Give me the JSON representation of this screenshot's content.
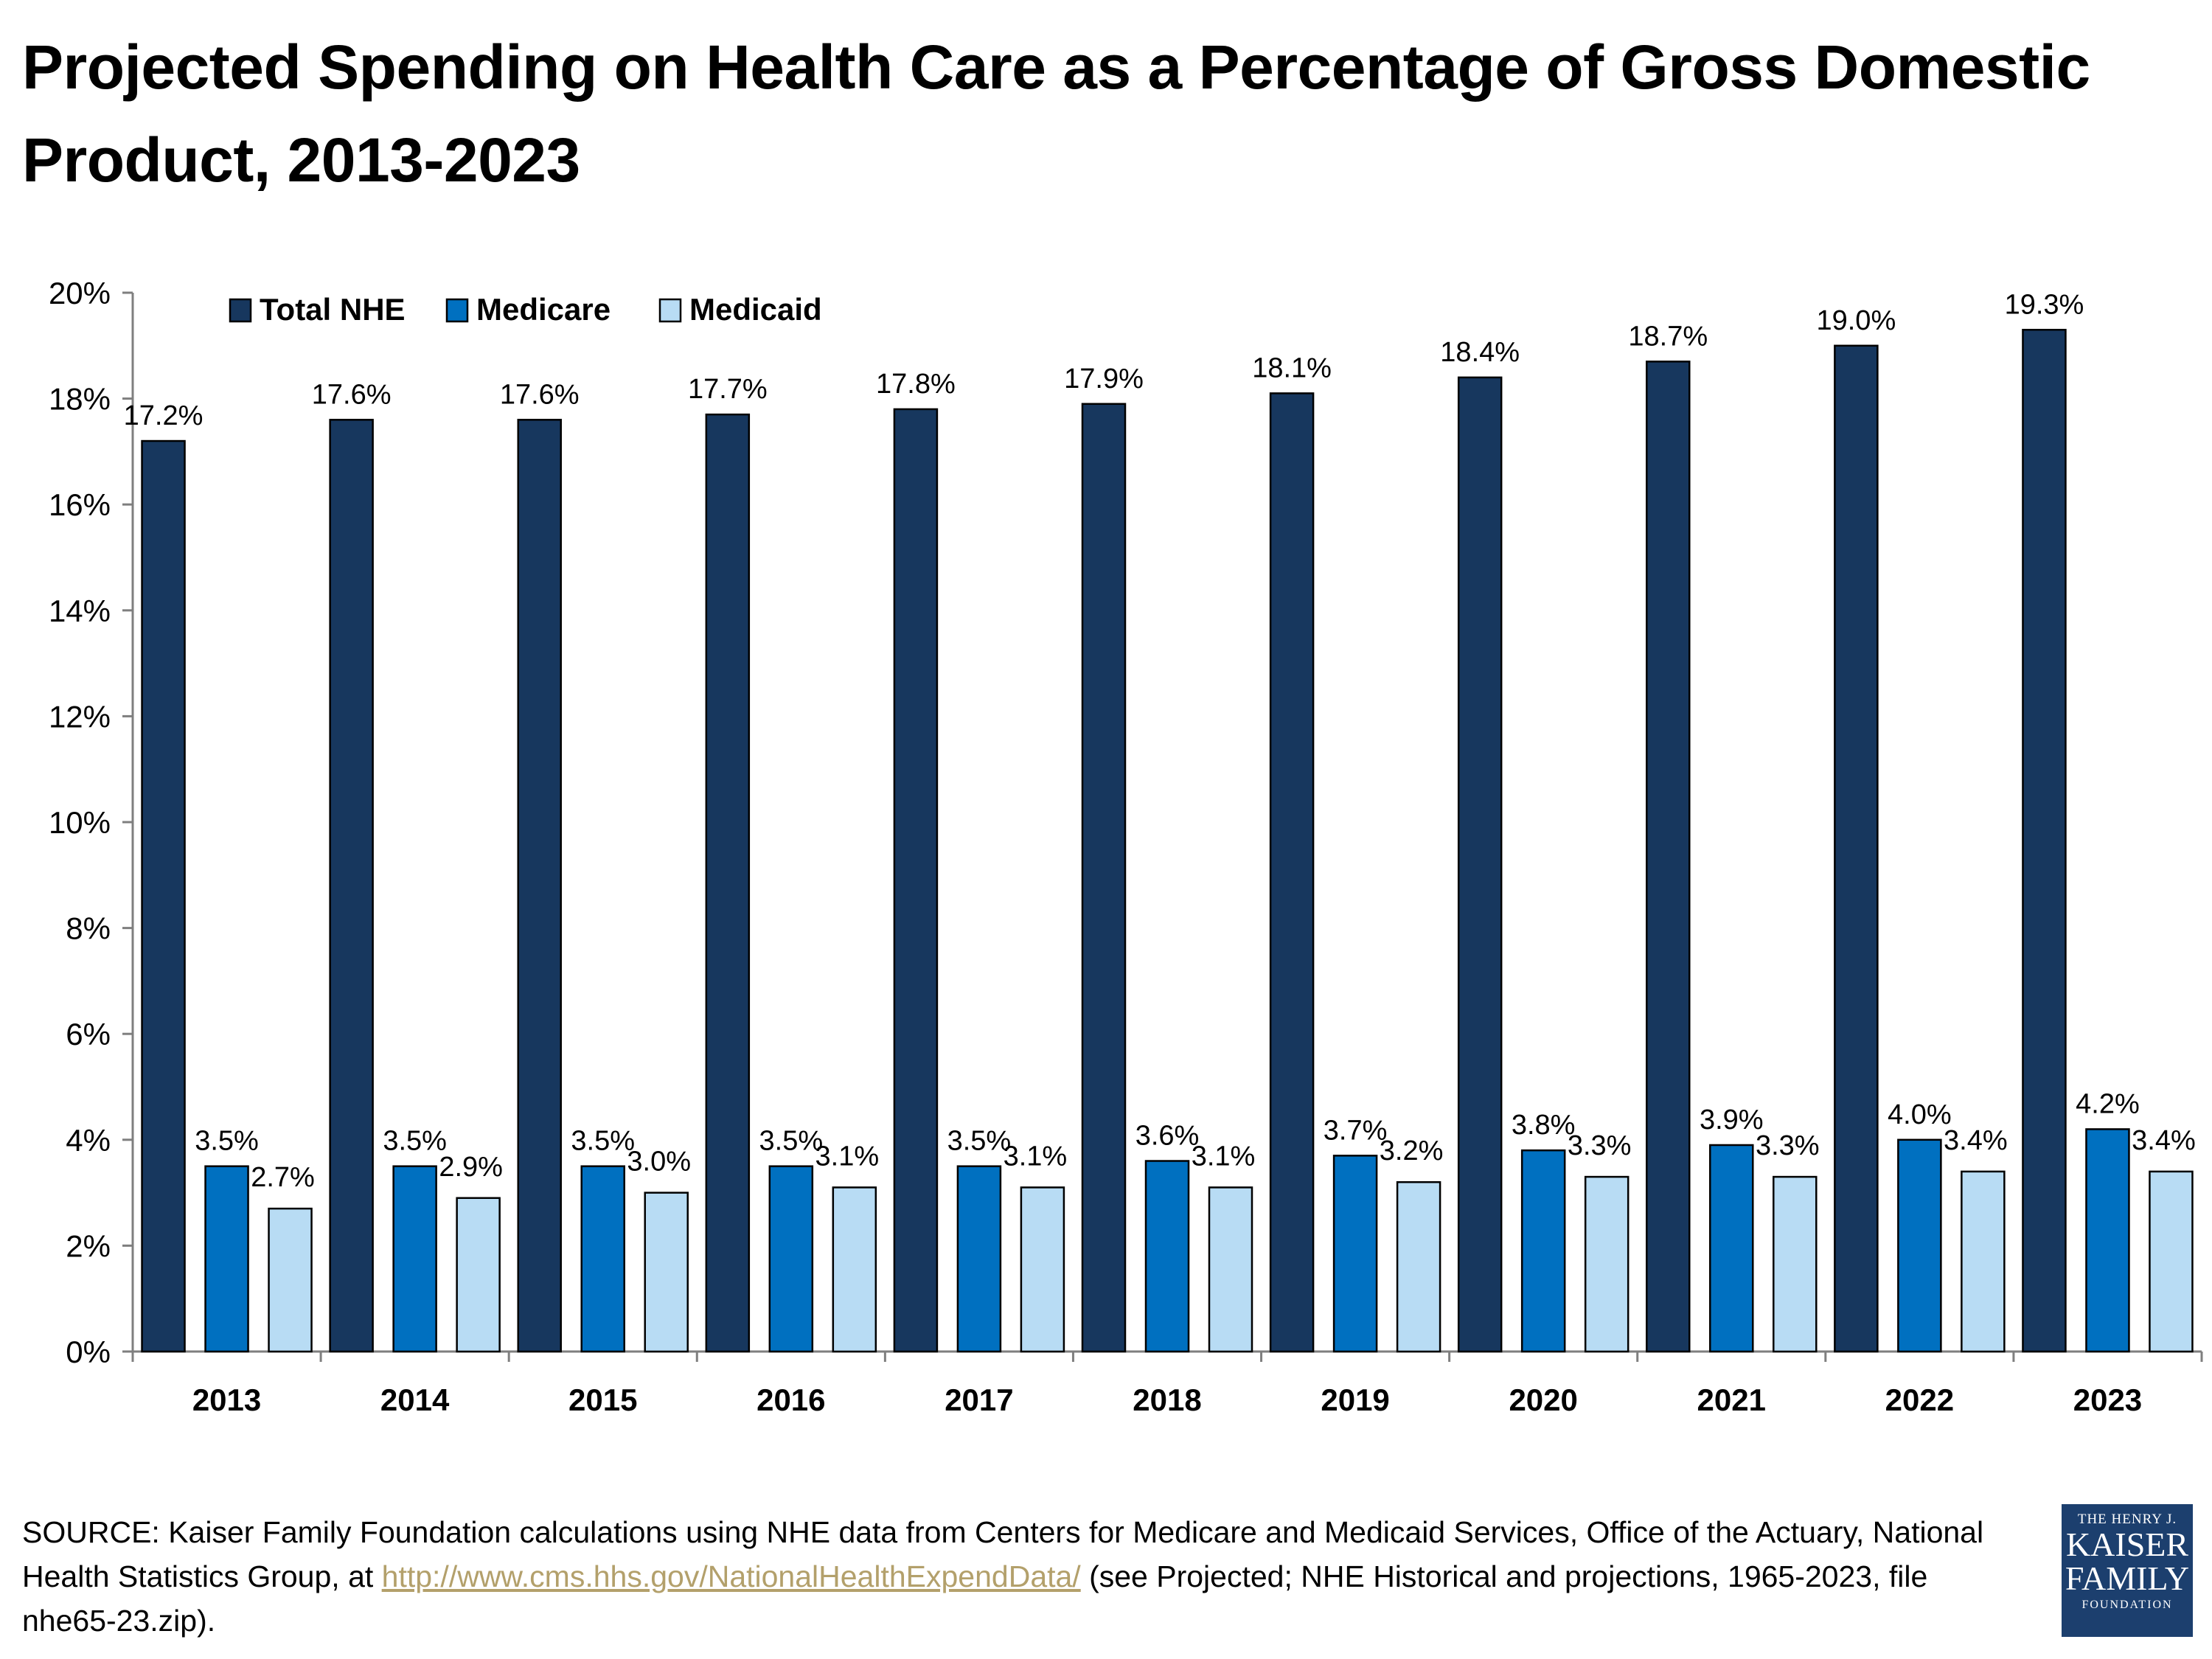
{
  "chart_data": {
    "type": "bar",
    "title": "Projected Spending on Health Care as a Percentage of Gross Domestic Product, 2013-2023",
    "categories": [
      "2013",
      "2014",
      "2015",
      "2016",
      "2017",
      "2018",
      "2019",
      "2020",
      "2021",
      "2022",
      "2023"
    ],
    "series": [
      {
        "name": "Total NHE",
        "color": "#17375e",
        "values": [
          17.2,
          17.6,
          17.6,
          17.7,
          17.8,
          17.9,
          18.1,
          18.4,
          18.7,
          19.0,
          19.3
        ],
        "labels": [
          "17.2%",
          "17.6%",
          "17.6%",
          "17.7%",
          "17.8%",
          "17.9%",
          "18.1%",
          "18.4%",
          "18.7%",
          "19.0%",
          "19.3%"
        ]
      },
      {
        "name": "Medicare",
        "color": "#0070c0",
        "values": [
          3.5,
          3.5,
          3.5,
          3.5,
          3.5,
          3.6,
          3.7,
          3.8,
          3.9,
          4.0,
          4.2
        ],
        "labels": [
          "3.5%",
          "3.5%",
          "3.5%",
          "3.5%",
          "3.5%",
          "3.6%",
          "3.7%",
          "3.8%",
          "3.9%",
          "4.0%",
          "4.2%"
        ]
      },
      {
        "name": "Medicaid",
        "color": "#b8dcf4",
        "values": [
          2.7,
          2.9,
          3.0,
          3.1,
          3.1,
          3.1,
          3.2,
          3.3,
          3.3,
          3.4,
          3.4
        ],
        "labels": [
          "2.7%",
          "2.9%",
          "3.0%",
          "3.1%",
          "3.1%",
          "3.1%",
          "3.2%",
          "3.3%",
          "3.3%",
          "3.4%",
          "3.4%"
        ]
      }
    ],
    "yticks": [
      "0%",
      "2%",
      "4%",
      "6%",
      "8%",
      "10%",
      "12%",
      "14%",
      "16%",
      "18%",
      "20%"
    ],
    "ylim": [
      0,
      20
    ],
    "xlabel": "",
    "ylabel": "",
    "legend_position": "top-left",
    "grid": false
  },
  "footer": {
    "source_prefix": "SOURCE: Kaiser Family Foundation calculations using NHE data from Centers for Medicare and Medicaid Services, Office of the Actuary, National Health Statistics Group, at ",
    "source_link": "http://www.cms.hhs.gov/NationalHealthExpendData/",
    "source_suffix": " (see Projected; NHE Historical and projections, 1965-2023, file nhe65-23.zip)."
  },
  "logo": {
    "line1": "THE HENRY J.",
    "line2": "KAISER",
    "line3": "FAMILY",
    "line4": "FOUNDATION"
  }
}
